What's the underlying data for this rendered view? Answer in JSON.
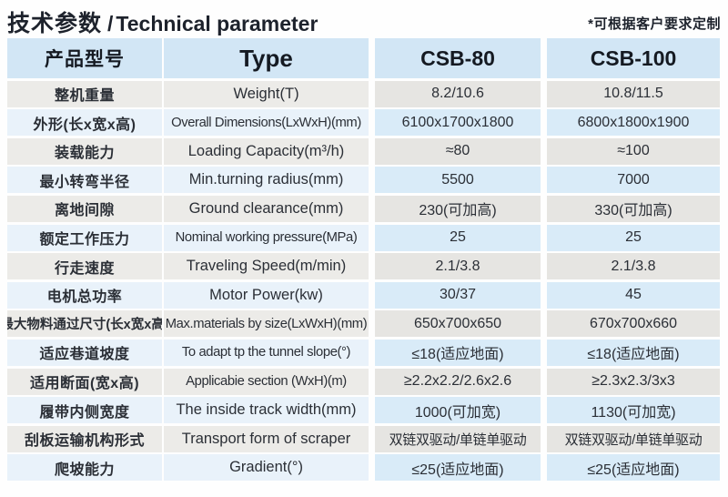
{
  "header": {
    "title_zh": "技术参数",
    "title_sep": "/",
    "title_en": "Technical parameter",
    "note": "*可根据客户要求定制"
  },
  "table": {
    "columns": [
      "产品型号",
      "Type",
      "CSB-80",
      "CSB-100"
    ],
    "rows": [
      {
        "param_zh": "整机重量",
        "param_en": "Weight(T)",
        "csb80": "8.2/10.6",
        "csb100": "10.8/11.5"
      },
      {
        "param_zh": "外形(长x宽x高)",
        "param_en": "Overall Dimensions(LxWxH)(mm)",
        "csb80": "6100x1700x1800",
        "csb100": "6800x1800x1900"
      },
      {
        "param_zh": "装载能力",
        "param_en": "Loading Capacity(m³/h)",
        "csb80": "≈80",
        "csb100": "≈100"
      },
      {
        "param_zh": "最小转弯半径",
        "param_en": "Min.turning radius(mm)",
        "csb80": "5500",
        "csb100": "7000"
      },
      {
        "param_zh": "离地间隙",
        "param_en": "Ground clearance(mm)",
        "csb80": "230(可加高)",
        "csb100": "330(可加高)"
      },
      {
        "param_zh": "额定工作压力",
        "param_en": "Nominal working pressure(MPa)",
        "csb80": "25",
        "csb100": "25"
      },
      {
        "param_zh": "行走速度",
        "param_en": "Traveling Speed(m/min)",
        "csb80": "2.1/3.8",
        "csb100": "2.1/3.8"
      },
      {
        "param_zh": "电机总功率",
        "param_en": "Motor Power(kw)",
        "csb80": "30/37",
        "csb100": "45"
      },
      {
        "param_zh": "最大物料通过尺寸(长x宽x高)",
        "param_en": "Max.materials by size(LxWxH)(mm)",
        "csb80": "650x700x650",
        "csb100": "670x700x660"
      },
      {
        "param_zh": "适应巷道坡度",
        "param_en": "To adapt tp the tunnel slope(°)",
        "csb80": "≤18(适应地面)",
        "csb100": "≤18(适应地面)"
      },
      {
        "param_zh": "适用断面(宽x高)",
        "param_en": "Applicabie section (WxH)(m)",
        "csb80": "≥2.2x2.2/2.6x2.6",
        "csb100": "≥2.3x2.3/3x3"
      },
      {
        "param_zh": "履带内侧宽度",
        "param_en": "The inside track width(mm)",
        "csb80": "1000(可加宽)",
        "csb100": "1130(可加宽)"
      },
      {
        "param_zh": "刮板运输机构形式",
        "param_en": "Transport form of scraper",
        "csb80": "双链双驱动/单链单驱动",
        "csb100": "双链双驱动/单链单驱动"
      },
      {
        "param_zh": "爬坡能力",
        "param_en": "Gradient(°)",
        "csb80": "≤25(适应地面)",
        "csb100": "≤25(适应地面)"
      }
    ]
  },
  "colors": {
    "title_text": "#1d222c",
    "header_bg": "#d2e6f5",
    "row_gray_left": "#ecebe8",
    "row_gray_right": "#e6e5e2",
    "row_blue_left": "#e9f2fa",
    "row_blue_right": "#d9ebf8",
    "cell_text": "#2b2f36"
  }
}
